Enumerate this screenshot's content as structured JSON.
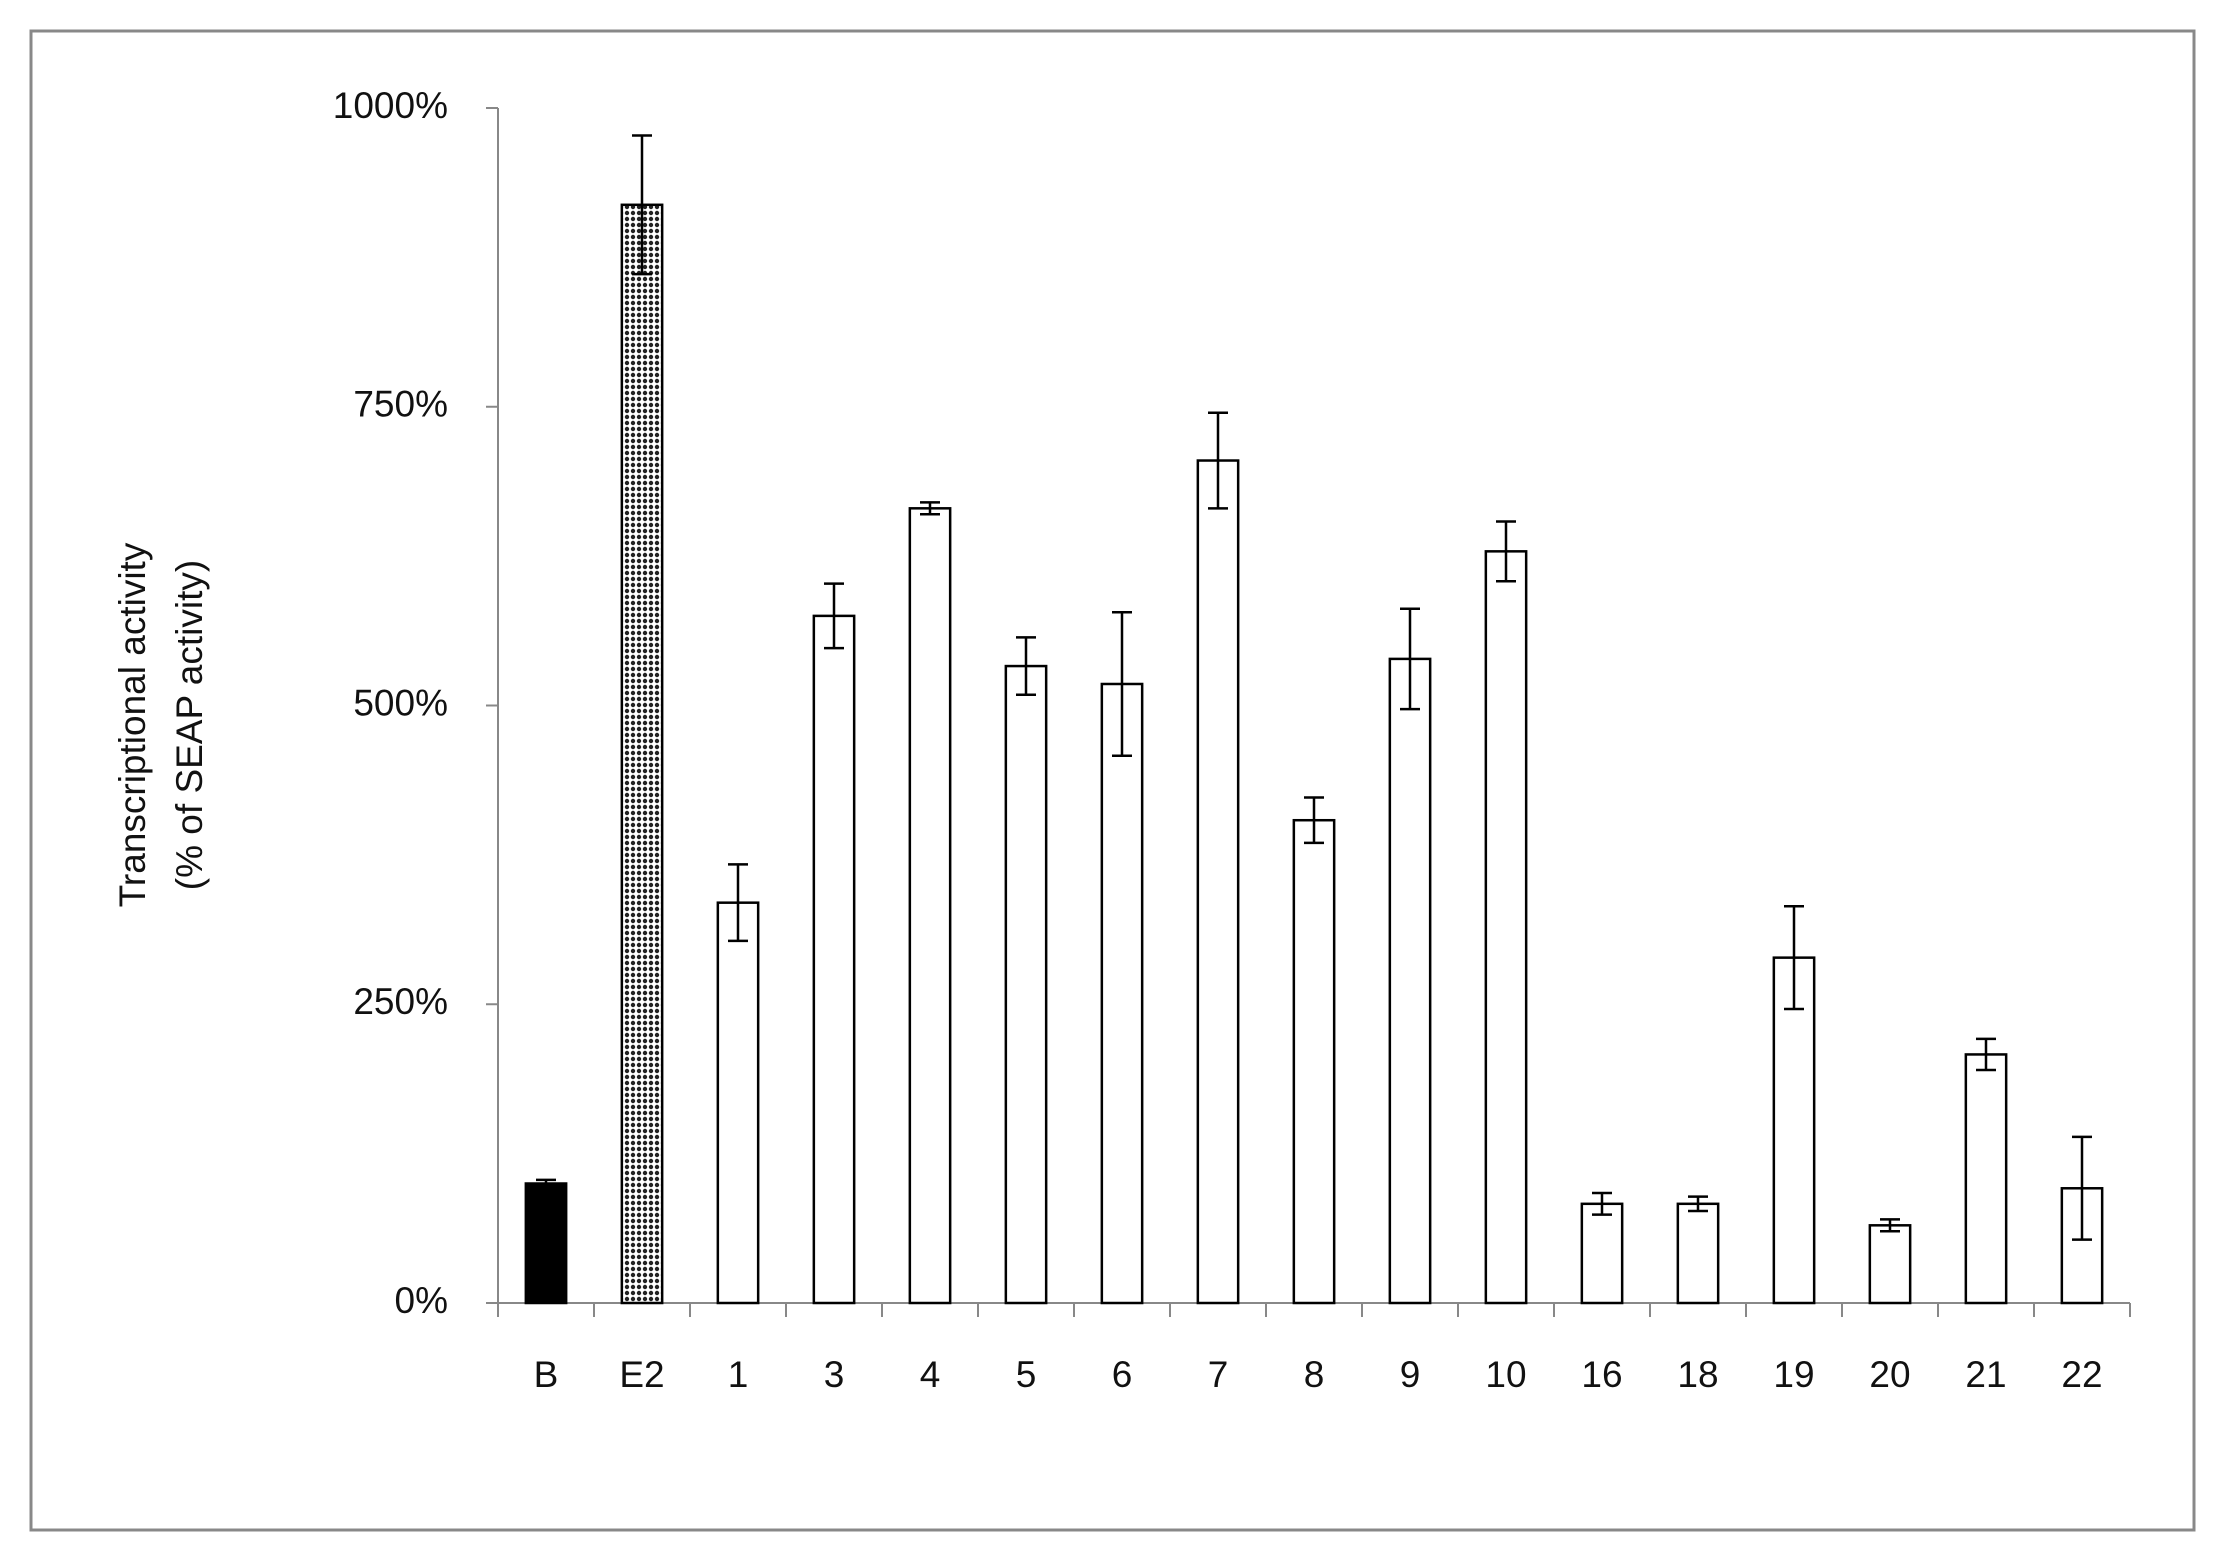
{
  "chart_data": {
    "type": "bar",
    "ylabel": [
      "Transcriptional activity",
      "(% of SEAP activity)"
    ],
    "categories": [
      "B",
      "E2",
      "1",
      "3",
      "4",
      "5",
      "6",
      "7",
      "8",
      "9",
      "10",
      "16",
      "18",
      "19",
      "20",
      "21",
      "22"
    ],
    "values": [
      100,
      919,
      335,
      575,
      665,
      533,
      518,
      705,
      404,
      539,
      629,
      83,
      83,
      289,
      65,
      208,
      96
    ],
    "errors": [
      3,
      58,
      32,
      27,
      5,
      24,
      60,
      40,
      19,
      42,
      25,
      9,
      6,
      43,
      5,
      13,
      43
    ],
    "colors": [
      "#000000",
      "#444444",
      "#ffffff",
      "#ffffff",
      "#ffffff",
      "#ffffff",
      "#ffffff",
      "#ffffff",
      "#ffffff",
      "#ffffff",
      "#ffffff",
      "#ffffff",
      "#ffffff",
      "#ffffff",
      "#ffffff",
      "#ffffff",
      "#ffffff"
    ],
    "ylim": [
      0,
      1000
    ],
    "yticks": [
      {
        "value": 0,
        "label": "0%"
      },
      {
        "value": 250,
        "label": "250%"
      },
      {
        "value": 500,
        "label": "500%"
      },
      {
        "value": 750,
        "label": "750%"
      },
      {
        "value": 1000,
        "label": "1000%"
      }
    ],
    "grid": false
  }
}
